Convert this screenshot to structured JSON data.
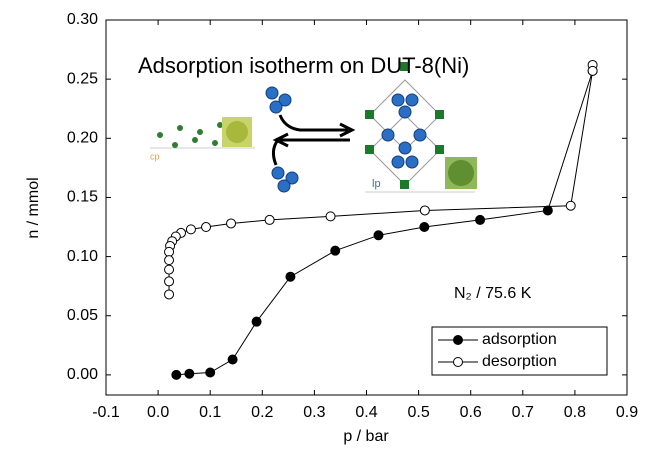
{
  "chart_data": {
    "type": "line",
    "title": "Adsorption isotherm on DUT-8(Ni)",
    "annotations": [
      "N₂ / 75.6 K",
      "cp",
      "lp"
    ],
    "x_label": "p / bar",
    "y_label": "n / mmol",
    "xlim": [
      -0.1,
      0.9
    ],
    "ylim": [
      -0.017,
      0.3
    ],
    "xticks": [
      -0.1,
      {
        "value": 0,
        "label": "0.0"
      },
      0.1,
      0.2,
      0.3,
      0.4,
      0.5,
      0.6,
      0.7,
      0.8,
      0.9
    ],
    "yticks": [
      {
        "value": 0,
        "label": "0.00"
      },
      0.05,
      {
        "value": 0.1,
        "label": "0.10"
      },
      0.15,
      {
        "value": 0.2,
        "label": "0.20"
      },
      0.25,
      {
        "value": 0.3,
        "label": "0.30"
      }
    ],
    "legend": "lower right",
    "series": [
      {
        "name": "adsorption",
        "color": "#000000",
        "marker_fill": "#000000",
        "x": [
          0.035,
          0.06,
          0.1,
          0.143,
          0.189,
          0.254,
          0.34,
          0.423,
          0.511,
          0.618,
          0.748,
          0.834
        ],
        "values": [
          0.0,
          0.001,
          0.002,
          0.013,
          0.045,
          0.083,
          0.105,
          0.118,
          0.125,
          0.131,
          0.139,
          0.257
        ]
      },
      {
        "name": "desorption",
        "color": "#000000",
        "marker_fill": "#ffffff",
        "x": [
          0.834,
          0.834,
          0.792,
          0.512,
          0.331,
          0.214,
          0.14,
          0.092,
          0.063,
          0.044,
          0.034,
          0.027,
          0.023,
          0.021,
          0.021,
          0.021,
          0.021,
          0.021
        ],
        "values": [
          0.262,
          0.257,
          0.143,
          0.139,
          0.134,
          0.131,
          0.128,
          0.125,
          0.123,
          0.12,
          0.117,
          0.113,
          0.109,
          0.104,
          0.097,
          0.089,
          0.079,
          0.068
        ]
      }
    ]
  }
}
